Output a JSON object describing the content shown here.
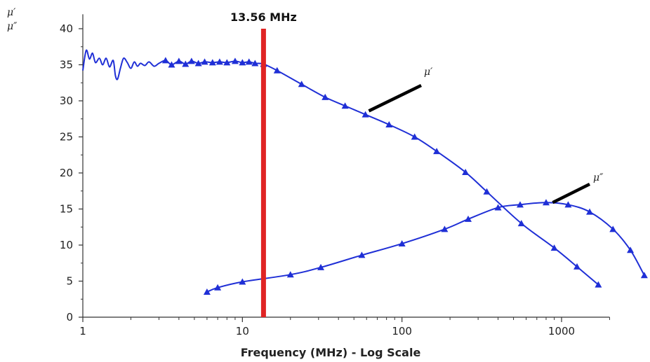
{
  "chart_data": {
    "type": "line",
    "xlabel": "Frequency (MHz) - Log Scale",
    "ylabel": [
      "μ′",
      "μ″"
    ],
    "x_scale": "log",
    "xlim": [
      1,
      3300
    ],
    "ylim": [
      0,
      40
    ],
    "x_ticks": [
      1,
      10,
      100,
      1000
    ],
    "y_ticks": [
      0,
      5,
      10,
      15,
      20,
      25,
      30,
      35,
      40
    ],
    "grid": false,
    "colors": {
      "series": "#1f2fd6",
      "marker": "#e02424",
      "pointer": "#000000"
    },
    "marker": {
      "x": 13.56,
      "label": "13.56 MHz"
    },
    "series": [
      {
        "name": "μ′",
        "x": [
          1,
          1.05,
          1.1,
          1.15,
          1.2,
          1.27,
          1.33,
          1.4,
          1.47,
          1.55,
          1.6,
          1.65,
          1.72,
          1.8,
          1.9,
          2.0,
          2.1,
          2.2,
          2.3,
          2.45,
          2.6,
          2.8,
          3.0,
          3.3,
          3.6,
          4.0,
          4.4,
          4.8,
          5.3,
          5.8,
          6.5,
          7.2,
          8.0,
          9.0,
          10,
          11,
          12,
          13.56,
          16.5,
          23.5,
          33,
          44,
          59,
          83,
          120,
          165,
          250,
          340,
          560,
          900,
          1250,
          1700
        ],
        "y": [
          34.2,
          37.0,
          35.8,
          36.6,
          35.3,
          35.9,
          35.0,
          35.9,
          34.7,
          35.6,
          33.5,
          33.0,
          34.5,
          35.9,
          35.3,
          34.5,
          35.4,
          34.8,
          35.2,
          34.9,
          35.4,
          34.8,
          35.2,
          35.6,
          35.0,
          35.5,
          35.1,
          35.5,
          35.2,
          35.4,
          35.3,
          35.4,
          35.3,
          35.5,
          35.3,
          35.4,
          35.2,
          35.1,
          34.2,
          32.3,
          30.5,
          29.3,
          28.1,
          26.7,
          25.0,
          23.0,
          20.1,
          17.4,
          13.0,
          9.6,
          7.0,
          4.5
        ]
      },
      {
        "name": "μ″",
        "x": [
          6,
          7,
          10,
          20,
          31,
          56,
          100,
          185,
          260,
          400,
          550,
          800,
          1100,
          1500,
          2100,
          2700,
          3300
        ],
        "y": [
          3.5,
          4.1,
          4.9,
          5.9,
          6.9,
          8.6,
          10.2,
          12.2,
          13.6,
          15.2,
          15.6,
          15.9,
          15.6,
          14.6,
          12.2,
          9.3,
          5.8
        ]
      }
    ]
  }
}
